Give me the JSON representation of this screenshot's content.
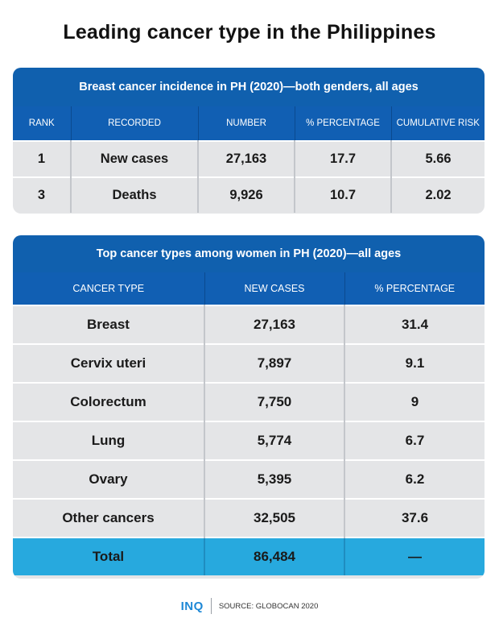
{
  "page_title": "Leading cancer type in the Philippines",
  "footer": {
    "logo": "INQ",
    "source": "SOURCE: GLOBOCAN 2020"
  },
  "colors": {
    "header_blue": "#1060ae",
    "total_row_blue": "#27a9de",
    "cell_gray": "#e4e5e7"
  },
  "chart_data": [
    {
      "type": "table",
      "title": "Breast cancer incidence in PH (2020)—both genders, all ages",
      "columns": [
        "RANK",
        "RECORDED",
        "NUMBER",
        "% PERCENTAGE",
        "CUMULATIVE RISK"
      ],
      "rows": [
        [
          "1",
          "New cases",
          "27,163",
          "17.7",
          "5.66"
        ],
        [
          "3",
          "Deaths",
          "9,926",
          "10.7",
          "2.02"
        ]
      ]
    },
    {
      "type": "table",
      "title": "Top cancer types among women in PH (2020)—all ages",
      "columns": [
        "CANCER TYPE",
        "NEW CASES",
        "% PERCENTAGE"
      ],
      "rows": [
        [
          "Breast",
          "27,163",
          "31.4"
        ],
        [
          "Cervix uteri",
          "7,897",
          "9.1"
        ],
        [
          "Colorectum",
          "7,750",
          "9"
        ],
        [
          "Lung",
          "5,774",
          "6.7"
        ],
        [
          "Ovary",
          "5,395",
          "6.2"
        ],
        [
          "Other cancers",
          "32,505",
          "37.6"
        ]
      ],
      "total_row": [
        "Total",
        "86,484",
        "—"
      ]
    }
  ]
}
